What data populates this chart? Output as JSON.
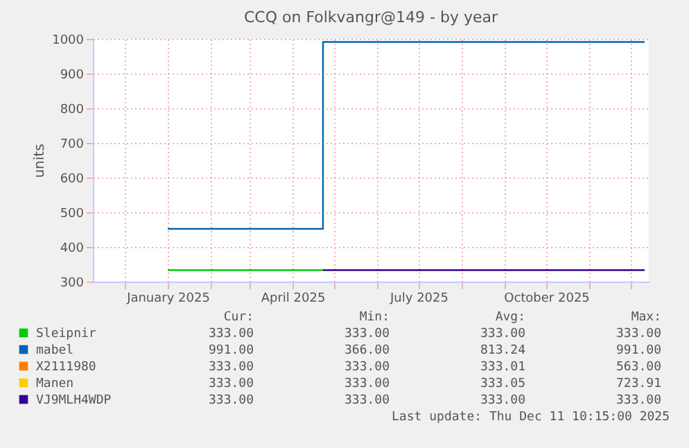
{
  "chart_data": {
    "type": "step",
    "title": "CCQ on Folkvangr@149 - by year",
    "ylabel": "units",
    "xlim": [
      "2024-11-08",
      "2025-12-14"
    ],
    "ylim": [
      300,
      1000
    ],
    "yticks": [
      300,
      400,
      500,
      600,
      700,
      800,
      900,
      1000
    ],
    "xticks": [
      {
        "value": "2024-12-01",
        "label": null
      },
      {
        "value": "2025-01-01",
        "label": "January 2025"
      },
      {
        "value": "2025-02-01",
        "label": null
      },
      {
        "value": "2025-03-01",
        "label": null
      },
      {
        "value": "2025-04-01",
        "label": "April 2025"
      },
      {
        "value": "2025-05-01",
        "label": null
      },
      {
        "value": "2025-06-01",
        "label": null
      },
      {
        "value": "2025-07-01",
        "label": "July 2025"
      },
      {
        "value": "2025-08-01",
        "label": null
      },
      {
        "value": "2025-09-01",
        "label": null
      },
      {
        "value": "2025-10-01",
        "label": "October 2025"
      },
      {
        "value": "2025-11-01",
        "label": null
      },
      {
        "value": "2025-12-01",
        "label": null
      }
    ],
    "grid": true,
    "legend": "bottom",
    "series": [
      {
        "name": "Sleipnir",
        "color": "#00cc00",
        "x": [
          "2025-01-01",
          "2025-04-23"
        ],
        "values": [
          333,
          333
        ]
      },
      {
        "name": "mabel",
        "color": "#0066b3",
        "x": [
          "2025-01-01",
          "2025-04-23",
          "2025-12-11"
        ],
        "values": [
          452,
          991,
          991
        ]
      },
      {
        "name": "X2111980",
        "color": "#ff8000"
      },
      {
        "name": "Manen",
        "color": "#ffcc00"
      },
      {
        "name": "VJ9MLH4WDP",
        "color": "#330099",
        "x": [
          "2025-04-23",
          "2025-12-11"
        ],
        "values": [
          333,
          333
        ]
      }
    ],
    "annotations": [
      "Cur:",
      "Min:",
      "Avg:",
      "Max:",
      "333.00",
      "333.00",
      "333.00",
      "333.00",
      "991.00",
      "366.00",
      "813.24",
      "991.00",
      "333.00",
      "333.00",
      "333.01",
      "563.00",
      "333.00",
      "333.00",
      "333.05",
      "723.91",
      "333.00",
      "333.00",
      "333.00",
      "333.00",
      "Last update: Thu Dec 11 10:15:00 2025"
    ]
  }
}
